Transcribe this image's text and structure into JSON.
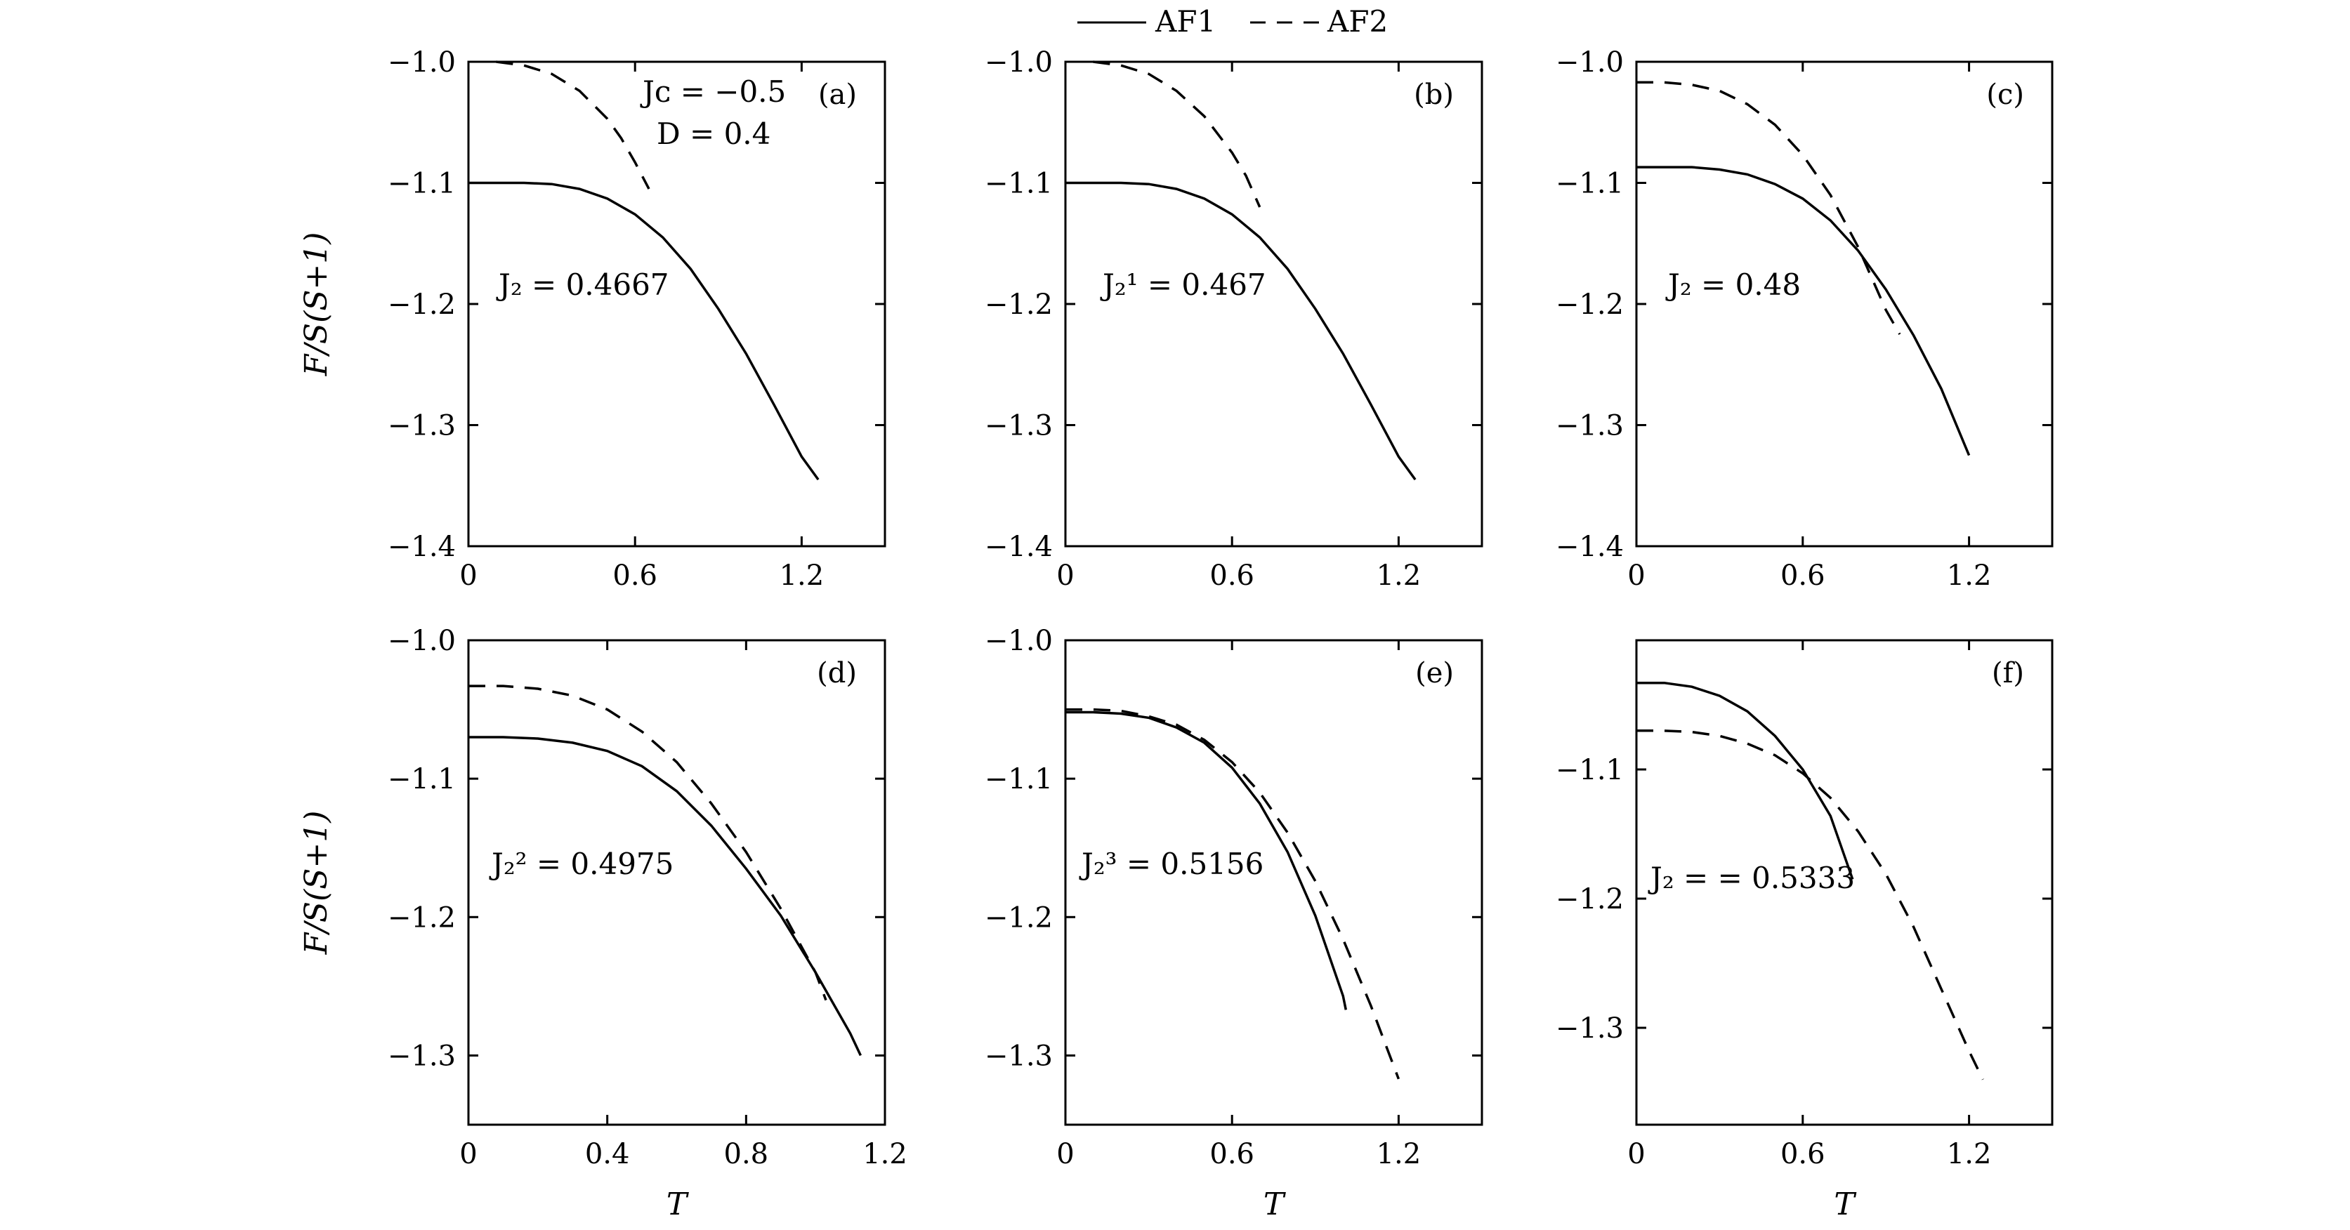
{
  "legend": {
    "entries": [
      {
        "label": "AF1",
        "style": "solid"
      },
      {
        "label": "AF2",
        "style": "dashed"
      }
    ]
  },
  "chart_data": [
    {
      "type": "line",
      "panel": "(a)",
      "xlim": [
        0,
        1.5
      ],
      "ylim": [
        -1.4,
        -1.0
      ],
      "xticks": [
        0,
        0.6,
        1.2
      ],
      "xtick_labels": [
        "0",
        "0.6",
        "1.2"
      ],
      "yticks": [
        -1.0,
        -1.1,
        -1.2,
        -1.3,
        -1.4
      ],
      "ytick_labels": [
        "−1.0",
        "−1.1",
        "−1.2",
        "−1.3",
        "−1.4"
      ],
      "ylabel": "F/S(S+1)",
      "xlabel": "",
      "annotations": [
        "J₂ = 0.4667",
        "Jᴄ = −0.5",
        "D = 0.4"
      ],
      "series": [
        {
          "name": "AF1",
          "x": [
            0,
            0.1,
            0.2,
            0.3,
            0.4,
            0.5,
            0.6,
            0.7,
            0.8,
            0.9,
            1.0,
            1.1,
            1.2,
            1.26
          ],
          "y": [
            -1.1,
            -1.1,
            -1.1,
            -1.101,
            -1.105,
            -1.113,
            -1.126,
            -1.145,
            -1.171,
            -1.204,
            -1.241,
            -1.283,
            -1.326,
            -1.345
          ]
        },
        {
          "name": "AF2",
          "x": [
            0.1,
            0.2,
            0.3,
            0.4,
            0.5,
            0.55,
            0.6,
            0.65
          ],
          "y": [
            -1.0,
            -1.003,
            -1.01,
            -1.024,
            -1.047,
            -1.063,
            -1.083,
            -1.105
          ]
        }
      ]
    },
    {
      "type": "line",
      "panel": "(b)",
      "xlim": [
        0,
        1.5
      ],
      "ylim": [
        -1.4,
        -1.0
      ],
      "xticks": [
        0,
        0.6,
        1.2
      ],
      "xtick_labels": [
        "0",
        "0.6",
        "1.2"
      ],
      "yticks": [
        -1.0,
        -1.1,
        -1.2,
        -1.3,
        -1.4
      ],
      "ytick_labels": [
        "−1.0",
        "−1.1",
        "−1.2",
        "−1.3",
        "−1.4"
      ],
      "xlabel": "",
      "ylabel": "",
      "annotations": [
        "J₂¹ = 0.467"
      ],
      "series": [
        {
          "name": "AF1",
          "x": [
            0,
            0.1,
            0.2,
            0.3,
            0.4,
            0.5,
            0.6,
            0.7,
            0.8,
            0.9,
            1.0,
            1.1,
            1.2,
            1.26
          ],
          "y": [
            -1.1,
            -1.1,
            -1.1,
            -1.101,
            -1.105,
            -1.113,
            -1.126,
            -1.145,
            -1.171,
            -1.204,
            -1.241,
            -1.283,
            -1.326,
            -1.345
          ]
        },
        {
          "name": "AF2",
          "x": [
            0.1,
            0.2,
            0.3,
            0.4,
            0.5,
            0.6,
            0.65,
            0.7
          ],
          "y": [
            -1.0,
            -1.003,
            -1.01,
            -1.024,
            -1.045,
            -1.075,
            -1.094,
            -1.12
          ]
        }
      ]
    },
    {
      "type": "line",
      "panel": "(c)",
      "xlim": [
        0,
        1.5
      ],
      "ylim": [
        -1.4,
        -1.0
      ],
      "xticks": [
        0,
        0.6,
        1.2
      ],
      "xtick_labels": [
        "0",
        "0.6",
        "1.2"
      ],
      "yticks": [
        -1.0,
        -1.1,
        -1.2,
        -1.3,
        -1.4
      ],
      "ytick_labels": [
        "−1.0",
        "−1.1",
        "−1.2",
        "−1.3",
        "−1.4"
      ],
      "xlabel": "",
      "ylabel": "",
      "annotations": [
        "J₂ = 0.48"
      ],
      "series": [
        {
          "name": "AF1",
          "x": [
            0,
            0.1,
            0.2,
            0.3,
            0.4,
            0.5,
            0.6,
            0.7,
            0.8,
            0.9,
            1.0,
            1.1,
            1.2
          ],
          "y": [
            -1.087,
            -1.087,
            -1.087,
            -1.089,
            -1.093,
            -1.101,
            -1.113,
            -1.131,
            -1.156,
            -1.188,
            -1.226,
            -1.27,
            -1.325
          ]
        },
        {
          "name": "AF2",
          "x": [
            0,
            0.1,
            0.2,
            0.3,
            0.4,
            0.5,
            0.6,
            0.7,
            0.8,
            0.9,
            0.95
          ],
          "y": [
            -1.017,
            -1.017,
            -1.019,
            -1.024,
            -1.035,
            -1.052,
            -1.077,
            -1.11,
            -1.153,
            -1.205,
            -1.225
          ]
        }
      ]
    },
    {
      "type": "line",
      "panel": "(d)",
      "xlim": [
        0,
        1.2
      ],
      "ylim": [
        -1.35,
        -1.0
      ],
      "xticks": [
        0,
        0.4,
        0.8,
        1.2
      ],
      "xtick_labels": [
        "0",
        "0.4",
        "0.8",
        "1.2"
      ],
      "yticks": [
        -1.0,
        -1.1,
        -1.2,
        -1.3
      ],
      "ytick_labels": [
        "−1.0",
        "−1.1",
        "−1.2",
        "−1.3"
      ],
      "ylabel": "F/S(S+1)",
      "xlabel": "T",
      "annotations": [
        "J₂² = 0.4975"
      ],
      "series": [
        {
          "name": "AF1",
          "x": [
            0,
            0.1,
            0.2,
            0.3,
            0.4,
            0.5,
            0.6,
            0.7,
            0.8,
            0.9,
            1.0,
            1.1,
            1.13
          ],
          "y": [
            -1.07,
            -1.07,
            -1.071,
            -1.074,
            -1.08,
            -1.091,
            -1.109,
            -1.134,
            -1.165,
            -1.199,
            -1.24,
            -1.284,
            -1.3
          ]
        },
        {
          "name": "AF2",
          "x": [
            0,
            0.1,
            0.2,
            0.3,
            0.4,
            0.5,
            0.6,
            0.7,
            0.8,
            0.9,
            0.95,
            1.0,
            1.03
          ],
          "y": [
            -1.033,
            -1.033,
            -1.035,
            -1.04,
            -1.05,
            -1.066,
            -1.088,
            -1.118,
            -1.153,
            -1.194,
            -1.217,
            -1.24,
            -1.26
          ]
        }
      ]
    },
    {
      "type": "line",
      "panel": "(e)",
      "xlim": [
        0,
        1.5
      ],
      "ylim": [
        -1.35,
        -1.0
      ],
      "xticks": [
        0,
        0.6,
        1.2
      ],
      "xtick_labels": [
        "0",
        "0.6",
        "1.2"
      ],
      "yticks": [
        -1.0,
        -1.1,
        -1.2,
        -1.3
      ],
      "ytick_labels": [
        "−1.0",
        "−1.1",
        "−1.2",
        "−1.3"
      ],
      "xlabel": "T",
      "ylabel": "",
      "annotations": [
        "J₂³ = 0.5156"
      ],
      "series": [
        {
          "name": "AF1",
          "x": [
            0,
            0.1,
            0.2,
            0.3,
            0.4,
            0.5,
            0.6,
            0.7,
            0.8,
            0.9,
            1.0,
            1.01
          ],
          "y": [
            -1.052,
            -1.052,
            -1.053,
            -1.056,
            -1.063,
            -1.074,
            -1.092,
            -1.118,
            -1.153,
            -1.199,
            -1.257,
            -1.267
          ]
        },
        {
          "name": "AF2",
          "x": [
            0,
            0.1,
            0.2,
            0.3,
            0.4,
            0.5,
            0.6,
            0.7,
            0.8,
            0.9,
            1.0,
            1.1,
            1.2
          ],
          "y": [
            -1.05,
            -1.05,
            -1.051,
            -1.055,
            -1.061,
            -1.072,
            -1.088,
            -1.11,
            -1.139,
            -1.174,
            -1.216,
            -1.264,
            -1.317
          ]
        }
      ]
    },
    {
      "type": "line",
      "panel": "(f)",
      "xlim": [
        0,
        1.5
      ],
      "ylim": [
        -1.375,
        -1.0
      ],
      "xticks": [
        0,
        0.6,
        1.2
      ],
      "xtick_labels": [
        "0",
        "0.6",
        "1.2"
      ],
      "yticks": [
        -1.1,
        -1.2,
        -1.3
      ],
      "ytick_labels": [
        "−1.1",
        "−1.2",
        "−1.3"
      ],
      "xlabel": "T",
      "ylabel": "",
      "annotations": [
        "J₂ = = 0.5333"
      ],
      "series": [
        {
          "name": "AF1",
          "x": [
            0,
            0.1,
            0.2,
            0.3,
            0.4,
            0.5,
            0.6,
            0.7,
            0.78
          ],
          "y": [
            -1.033,
            -1.033,
            -1.036,
            -1.043,
            -1.055,
            -1.074,
            -1.1,
            -1.136,
            -1.185
          ]
        },
        {
          "name": "AF2",
          "x": [
            0,
            0.1,
            0.2,
            0.3,
            0.4,
            0.5,
            0.6,
            0.7,
            0.8,
            0.9,
            1.0,
            1.1,
            1.2,
            1.25
          ],
          "y": [
            -1.07,
            -1.07,
            -1.071,
            -1.074,
            -1.08,
            -1.089,
            -1.103,
            -1.122,
            -1.148,
            -1.181,
            -1.222,
            -1.27,
            -1.318,
            -1.34
          ]
        }
      ]
    }
  ]
}
